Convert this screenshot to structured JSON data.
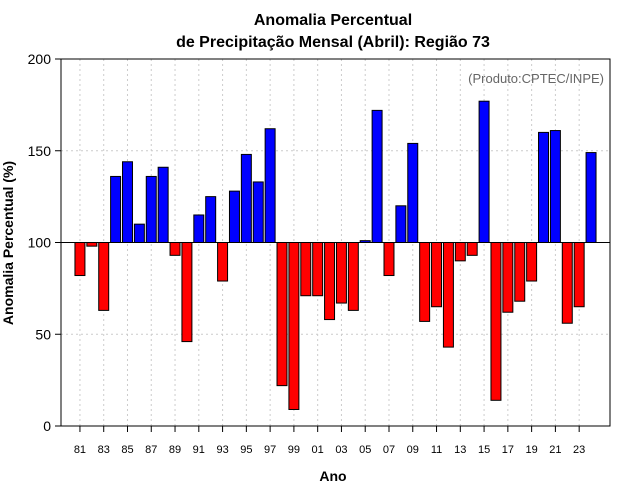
{
  "chart_data": {
    "type": "bar",
    "title_line1": "Anomalia Percentual",
    "title_line2": "de Precipitação Mensal (Abril): Região 73",
    "xlabel": "Ano",
    "ylabel": "Anomalia Percentual (%)",
    "source_note": "(Produto:CPTEC/INPE)",
    "baseline": 100,
    "ylim": [
      0,
      200
    ],
    "yticks": [
      "0",
      "50",
      "100",
      "150",
      "200"
    ],
    "grid": true,
    "colors": {
      "above": "#0000ff",
      "below": "#ff0000"
    },
    "tick_labels": [
      "81",
      "83",
      "85",
      "87",
      "89",
      "91",
      "93",
      "95",
      "97",
      "99",
      "01",
      "03",
      "05",
      "07",
      "09",
      "11",
      "13",
      "15",
      "17",
      "19",
      "21",
      "23"
    ],
    "categories": [
      "1981",
      "1982",
      "1983",
      "1984",
      "1985",
      "1986",
      "1987",
      "1988",
      "1989",
      "1990",
      "1991",
      "1992",
      "1993",
      "1994",
      "1995",
      "1996",
      "1997",
      "1998",
      "1999",
      "2000",
      "2001",
      "2002",
      "2003",
      "2004",
      "2005",
      "2006",
      "2007",
      "2008",
      "2009",
      "2010",
      "2011",
      "2012",
      "2013",
      "2014",
      "2015",
      "2016",
      "2017",
      "2018",
      "2019",
      "2020",
      "2021",
      "2022",
      "2023",
      "2024"
    ],
    "values": [
      82,
      98,
      63,
      136,
      144,
      110,
      136,
      141,
      93,
      46,
      115,
      125,
      79,
      128,
      148,
      133,
      162,
      22,
      9,
      71,
      71,
      58,
      67,
      63,
      101,
      172,
      82,
      120,
      154,
      57,
      65,
      43,
      90,
      93,
      177,
      14,
      62,
      68,
      79,
      160,
      161,
      56,
      65,
      149
    ]
  }
}
